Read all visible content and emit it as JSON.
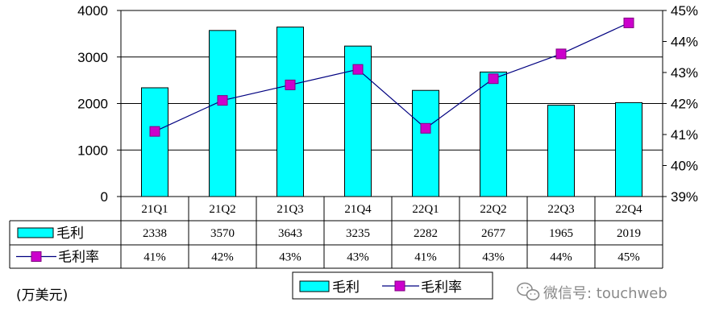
{
  "chart_data": {
    "type": "bar",
    "categories": [
      "21Q1",
      "21Q2",
      "21Q3",
      "21Q4",
      "22Q1",
      "22Q2",
      "22Q3",
      "22Q4"
    ],
    "series": [
      {
        "name": "毛利",
        "type": "bar",
        "axis": "left",
        "color": "#00ffff",
        "values": [
          2338,
          3570,
          3643,
          3235,
          2282,
          2677,
          1965,
          2019
        ]
      },
      {
        "name": "毛利率",
        "type": "line",
        "axis": "right",
        "color": "#cc00cc",
        "values": [
          41.1,
          42.1,
          42.6,
          43.1,
          41.2,
          42.8,
          43.6,
          44.6
        ]
      }
    ],
    "left_axis": {
      "ylim": [
        0,
        4000
      ],
      "ticks": [
        "0",
        "1000",
        "2000",
        "3000",
        "4000"
      ]
    },
    "right_axis": {
      "ylim": [
        39,
        45
      ],
      "ticks": [
        "39%",
        "40%",
        "41%",
        "42%",
        "43%",
        "44%",
        "45%"
      ]
    },
    "table": {
      "bar_row_label": "毛利",
      "bar_row": [
        "2338",
        "3570",
        "3643",
        "3235",
        "2282",
        "2677",
        "1965",
        "2019"
      ],
      "line_row_label": "毛利率",
      "line_row": [
        "41%",
        "42%",
        "43%",
        "43%",
        "41%",
        "43%",
        "44%",
        "45%"
      ]
    },
    "unit_label": "(万美元)",
    "legend": {
      "position": "bottom",
      "items": [
        "毛利",
        "毛利率"
      ]
    },
    "grid": true
  },
  "watermark": "微信号: touchweb"
}
